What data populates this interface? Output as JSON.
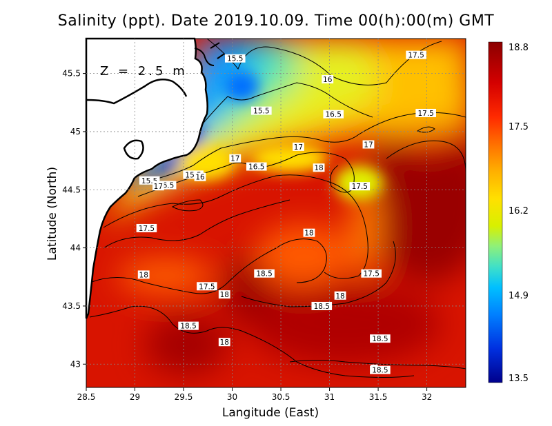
{
  "title": "Salinity (ppt). Date 2019.10.09. Time 00(h):00(m) GMT",
  "depth_label": "Z = 2.5 m",
  "x_axis": {
    "label": "Langitude (East)",
    "range": [
      28.5,
      32.4
    ],
    "ticks": [
      {
        "value": 28.5,
        "label": "28.5"
      },
      {
        "value": 29,
        "label": "29"
      },
      {
        "value": 29.5,
        "label": "29.5"
      },
      {
        "value": 30,
        "label": "30"
      },
      {
        "value": 30.5,
        "label": "30.5"
      },
      {
        "value": 31,
        "label": "31"
      },
      {
        "value": 31.5,
        "label": "31.5"
      },
      {
        "value": 32,
        "label": "32"
      }
    ]
  },
  "y_axis": {
    "label": "Latitude (North)",
    "range": [
      42.8,
      45.8
    ],
    "ticks": [
      {
        "value": 43,
        "label": "43"
      },
      {
        "value": 43.5,
        "label": "43.5"
      },
      {
        "value": 44,
        "label": "44"
      },
      {
        "value": 44.5,
        "label": "44.5"
      },
      {
        "value": 45,
        "label": "45"
      },
      {
        "value": 45.5,
        "label": "45.5"
      }
    ]
  },
  "colorbar": {
    "min": 13.5,
    "max": 18.8,
    "labels": [
      "18.8",
      "17.5",
      "16.2",
      "14.9",
      "13.5"
    ],
    "colors": [
      "#8b0000",
      "#d40000",
      "#ff2a00",
      "#ff7000",
      "#ffb000",
      "#ffe000",
      "#d8f000",
      "#8ef07a",
      "#40e0c8",
      "#00c0ff",
      "#0080ff",
      "#0030e0",
      "#00008b"
    ]
  },
  "contour_labels": [
    {
      "text": "15.5",
      "lon": 30.03,
      "lat": 45.63
    },
    {
      "text": "17.5",
      "lon": 31.89,
      "lat": 45.66
    },
    {
      "text": "16",
      "lon": 30.98,
      "lat": 45.45
    },
    {
      "text": "15.5",
      "lon": 30.3,
      "lat": 45.18
    },
    {
      "text": "16.5",
      "lon": 31.04,
      "lat": 45.15
    },
    {
      "text": "17.5",
      "lon": 31.99,
      "lat": 45.16
    },
    {
      "text": "17",
      "lon": 30.68,
      "lat": 44.87
    },
    {
      "text": "17",
      "lon": 31.4,
      "lat": 44.89
    },
    {
      "text": "17",
      "lon": 30.03,
      "lat": 44.77
    },
    {
      "text": "16.5",
      "lon": 30.25,
      "lat": 44.7
    },
    {
      "text": "18",
      "lon": 30.89,
      "lat": 44.69
    },
    {
      "text": "15.5",
      "lon": 29.6,
      "lat": 44.63
    },
    {
      "text": "16",
      "lon": 29.67,
      "lat": 44.61
    },
    {
      "text": "15.5",
      "lon": 29.15,
      "lat": 44.58
    },
    {
      "text": "17.5",
      "lon": 31.31,
      "lat": 44.53
    },
    {
      "text": "16.5",
      "lon": 29.32,
      "lat": 44.54
    },
    {
      "text": "17",
      "lon": 29.24,
      "lat": 44.53
    },
    {
      "text": "17.5",
      "lon": 29.12,
      "lat": 44.17
    },
    {
      "text": "18",
      "lon": 30.79,
      "lat": 44.13
    },
    {
      "text": "18.5",
      "lon": 30.33,
      "lat": 43.78
    },
    {
      "text": "17.5",
      "lon": 31.43,
      "lat": 43.78
    },
    {
      "text": "18",
      "lon": 29.09,
      "lat": 43.77
    },
    {
      "text": "17.5",
      "lon": 29.74,
      "lat": 43.67
    },
    {
      "text": "18",
      "lon": 29.92,
      "lat": 43.6
    },
    {
      "text": "18",
      "lon": 31.11,
      "lat": 43.59
    },
    {
      "text": "18.5",
      "lon": 30.92,
      "lat": 43.5
    },
    {
      "text": "18.5",
      "lon": 29.55,
      "lat": 43.33
    },
    {
      "text": "18.5",
      "lon": 31.52,
      "lat": 43.22
    },
    {
      "text": "18",
      "lon": 29.92,
      "lat": 43.19
    },
    {
      "text": "1",
      "lon": 31.46,
      "lat": 42.96
    },
    {
      "text": "18.5",
      "lon": 31.52,
      "lat": 42.95
    }
  ]
}
